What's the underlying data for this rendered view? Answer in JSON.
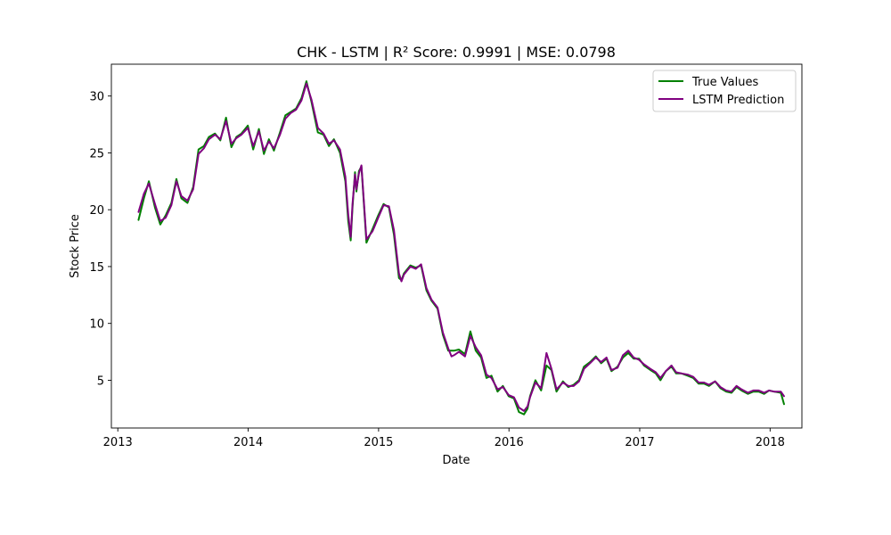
{
  "chart_data": {
    "type": "line",
    "title": "CHK - LSTM | R² Score: 0.9991 | MSE: 0.0798",
    "xlabel": "Date",
    "ylabel": "Stock Price",
    "xlim": [
      "2012-12-14",
      "2018-03-31"
    ],
    "ylim": [
      0.8,
      32.8
    ],
    "x_ticks": [
      "2013",
      "2014",
      "2015",
      "2016",
      "2017",
      "2018"
    ],
    "y_ticks": [
      "5",
      "10",
      "15",
      "20",
      "25",
      "30"
    ],
    "grid": false,
    "legend": {
      "position": "top-right",
      "entries": [
        "True Values",
        "LSTM Prediction"
      ]
    },
    "x": [
      "2013-02-28",
      "2013-03-15",
      "2013-03-29",
      "2013-04-15",
      "2013-04-30",
      "2013-05-15",
      "2013-05-31",
      "2013-06-14",
      "2013-06-28",
      "2013-07-15",
      "2013-07-31",
      "2013-08-15",
      "2013-08-30",
      "2013-09-13",
      "2013-09-30",
      "2013-10-15",
      "2013-10-31",
      "2013-11-15",
      "2013-11-29",
      "2013-12-13",
      "2013-12-31",
      "2014-01-15",
      "2014-01-31",
      "2014-02-14",
      "2014-02-28",
      "2014-03-14",
      "2014-03-31",
      "2014-04-15",
      "2014-04-30",
      "2014-05-15",
      "2014-05-30",
      "2014-06-13",
      "2014-06-27",
      "2014-07-15",
      "2014-07-31",
      "2014-08-15",
      "2014-08-29",
      "2014-09-15",
      "2014-09-30",
      "2014-10-08",
      "2014-10-15",
      "2014-10-20",
      "2014-10-27",
      "2014-10-31",
      "2014-11-07",
      "2014-11-14",
      "2014-11-28",
      "2014-12-15",
      "2014-12-31",
      "2015-01-15",
      "2015-01-30",
      "2015-02-13",
      "2015-02-27",
      "2015-03-06",
      "2015-03-13",
      "2015-03-31",
      "2015-04-15",
      "2015-04-30",
      "2015-05-15",
      "2015-05-29",
      "2015-06-15",
      "2015-06-30",
      "2015-07-15",
      "2015-07-24",
      "2015-07-31",
      "2015-08-14",
      "2015-08-31",
      "2015-09-15",
      "2015-09-30",
      "2015-10-15",
      "2015-10-30",
      "2015-11-13",
      "2015-11-30",
      "2015-12-15",
      "2015-12-31",
      "2016-01-15",
      "2016-01-29",
      "2016-02-12",
      "2016-02-22",
      "2016-02-29",
      "2016-03-15",
      "2016-03-31",
      "2016-04-15",
      "2016-04-29",
      "2016-05-13",
      "2016-05-31",
      "2016-06-15",
      "2016-06-30",
      "2016-07-15",
      "2016-07-29",
      "2016-08-15",
      "2016-08-31",
      "2016-09-15",
      "2016-09-30",
      "2016-10-14",
      "2016-10-31",
      "2016-11-15",
      "2016-11-30",
      "2016-12-15",
      "2016-12-30",
      "2017-01-13",
      "2017-01-31",
      "2017-02-15",
      "2017-02-28",
      "2017-03-15",
      "2017-03-31",
      "2017-04-13",
      "2017-04-28",
      "2017-05-15",
      "2017-05-31",
      "2017-06-15",
      "2017-06-30",
      "2017-07-14",
      "2017-07-31",
      "2017-08-15",
      "2017-08-31",
      "2017-09-15",
      "2017-09-29",
      "2017-10-13",
      "2017-10-31",
      "2017-11-15",
      "2017-11-30",
      "2017-12-15",
      "2017-12-29",
      "2018-01-12",
      "2018-01-31",
      "2018-02-09"
    ],
    "series": [
      {
        "name": "True Values",
        "color": "#008000",
        "values": [
          19.1,
          21.0,
          22.5,
          20.2,
          18.7,
          19.5,
          20.6,
          22.7,
          21.0,
          20.6,
          22.0,
          25.3,
          25.6,
          26.4,
          26.7,
          26.1,
          28.1,
          25.5,
          26.4,
          26.7,
          27.4,
          25.3,
          27.1,
          24.9,
          26.2,
          25.2,
          26.8,
          28.3,
          28.6,
          28.9,
          29.8,
          31.3,
          29.5,
          26.8,
          26.6,
          25.6,
          26.2,
          25.0,
          22.5,
          19.0,
          17.3,
          20.2,
          23.3,
          21.6,
          23.4,
          23.8,
          17.1,
          18.3,
          19.5,
          20.5,
          20.2,
          17.8,
          14.0,
          13.8,
          14.4,
          15.1,
          14.9,
          15.1,
          12.9,
          12.0,
          11.3,
          9.0,
          7.6,
          7.6,
          7.6,
          7.7,
          7.3,
          9.3,
          7.6,
          7.0,
          5.2,
          5.4,
          4.0,
          4.5,
          3.6,
          3.4,
          2.2,
          2.0,
          2.5,
          3.6,
          5.0,
          4.1,
          6.3,
          5.9,
          4.0,
          4.9,
          4.4,
          4.6,
          5.0,
          6.2,
          6.6,
          7.1,
          6.5,
          6.9,
          5.8,
          6.2,
          7.0,
          7.4,
          6.9,
          6.9,
          6.3,
          5.9,
          5.6,
          5.0,
          5.8,
          6.2,
          5.6,
          5.6,
          5.4,
          5.2,
          4.7,
          4.7,
          4.5,
          4.9,
          4.3,
          4.0,
          3.9,
          4.4,
          4.1,
          3.8,
          4.0,
          4.0,
          3.8,
          4.1,
          4.0,
          3.9,
          2.9
        ]
      },
      {
        "name": "LSTM Prediction",
        "color": "#800080",
        "values": [
          19.8,
          21.4,
          22.3,
          20.5,
          19.0,
          19.3,
          20.4,
          22.5,
          21.2,
          20.8,
          21.8,
          24.9,
          25.4,
          26.2,
          26.6,
          26.2,
          27.8,
          25.8,
          26.3,
          26.6,
          27.2,
          25.6,
          26.9,
          25.2,
          26.0,
          25.4,
          26.6,
          28.0,
          28.5,
          28.8,
          29.6,
          31.1,
          29.7,
          27.2,
          26.7,
          25.8,
          26.1,
          25.3,
          22.9,
          19.6,
          17.6,
          20.5,
          23.1,
          21.8,
          23.2,
          23.9,
          17.4,
          18.1,
          19.3,
          20.4,
          20.3,
          18.2,
          14.4,
          13.7,
          14.3,
          15.0,
          14.8,
          15.2,
          13.1,
          12.1,
          11.4,
          9.2,
          7.8,
          7.1,
          7.2,
          7.5,
          7.1,
          8.9,
          7.9,
          7.2,
          5.5,
          5.2,
          4.2,
          4.4,
          3.7,
          3.5,
          2.6,
          2.3,
          2.7,
          3.5,
          4.8,
          4.3,
          7.4,
          6.0,
          4.2,
          4.8,
          4.5,
          4.5,
          4.9,
          6.0,
          6.5,
          7.0,
          6.6,
          7.0,
          5.9,
          6.1,
          7.2,
          7.6,
          7.0,
          6.8,
          6.4,
          6.0,
          5.7,
          5.2,
          5.8,
          6.3,
          5.7,
          5.6,
          5.5,
          5.3,
          4.8,
          4.8,
          4.6,
          4.9,
          4.4,
          4.1,
          4.0,
          4.5,
          4.2,
          3.9,
          4.1,
          4.1,
          3.9,
          4.1,
          4.0,
          4.0,
          3.6
        ]
      }
    ]
  }
}
